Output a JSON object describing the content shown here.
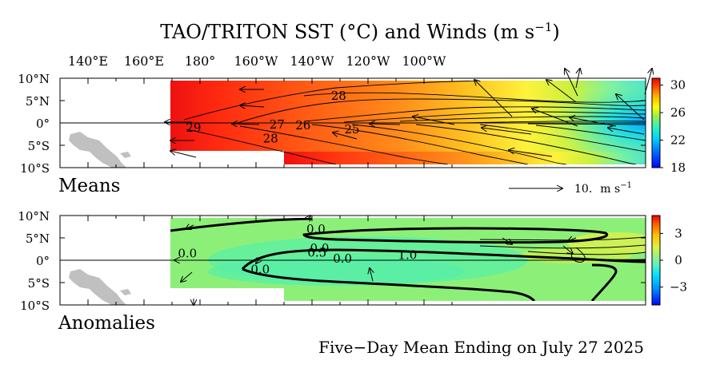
{
  "chart_data": [
    {
      "type": "heatmap",
      "panel_label": "Means",
      "title_main": "TAO/TRITON SST (°C) and Winds (m s",
      "title_sup": "−1",
      "title_end": ")",
      "x_tick_labels": [
        "140°E",
        "160°E",
        "180°",
        "160°W",
        "140°W",
        "120°W",
        "100°W"
      ],
      "y_tick_labels": [
        "10°N",
        "5°N",
        "0°",
        "5°S",
        "10°S"
      ],
      "colorbar": {
        "range": [
          18,
          31
        ],
        "ticks": [
          "30",
          "26",
          "22",
          "18"
        ],
        "colors": [
          "#0000ff",
          "#00aaff",
          "#00e0e0",
          "#40f0a0",
          "#b0f040",
          "#ffff00",
          "#ffc000",
          "#ff8800",
          "#ff4000",
          "#ee0000"
        ]
      },
      "contour_labels": [
        {
          "text": "28",
          "lon": -130.5,
          "lat": 5.5
        },
        {
          "text": "29",
          "lon": 177.7,
          "lat": -1.6
        },
        {
          "text": "27",
          "lon": -152.5,
          "lat": -0.9
        },
        {
          "text": "26",
          "lon": -143.2,
          "lat": -1.1
        },
        {
          "text": "28",
          "lon": -154.8,
          "lat": -4.0
        },
        {
          "text": "25",
          "lon": -125.7,
          "lat": -2.0
        }
      ],
      "wind_reference": {
        "value": "10.",
        "units": "m s",
        "units_sup": "−1"
      }
    },
    {
      "type": "heatmap",
      "panel_label": "Anomalies",
      "x_tick_labels": [
        "140°E",
        "160°E",
        "180°",
        "160°W",
        "140°W",
        "120°W",
        "100°W"
      ],
      "y_tick_labels": [
        "10°N",
        "5°N",
        "0°",
        "5°S",
        "10°S"
      ],
      "colorbar": {
        "range": [
          -5,
          5
        ],
        "ticks": [
          "3",
          "0",
          "−3"
        ],
        "colors": [
          "#0000ff",
          "#0090ff",
          "#00e0ff",
          "#60f0c0",
          "#a0f080",
          "#e0f040",
          "#ffc000",
          "#ff6000",
          "#ee0000"
        ]
      },
      "contour_labels": [
        {
          "text": "0.0",
          "lon": -138.6,
          "lat": 6.4
        },
        {
          "text": "0.0",
          "lon": -137.3,
          "lat": 2.1
        },
        {
          "text": "0.5",
          "lon": -138.2,
          "lat": 1.2
        },
        {
          "text": "0.0",
          "lon": 175.5,
          "lat": 1.0
        },
        {
          "text": "0.0",
          "lon": -129.1,
          "lat": -0.2
        },
        {
          "text": "1.0",
          "lon": -105.9,
          "lat": 0.6
        },
        {
          "text": "0.0",
          "lon": -158.5,
          "lat": -2.6
        }
      ]
    }
  ],
  "footer": "Five−Day Mean Ending on July 27 2025"
}
